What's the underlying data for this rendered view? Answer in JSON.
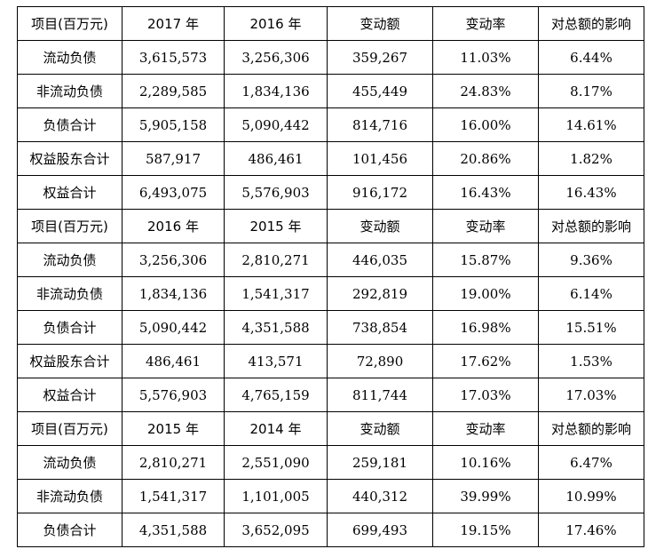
{
  "sections": [
    {
      "header": [
        "项目(百万元)",
        "2017 年",
        "2016 年",
        "变动额",
        "变动率",
        "对总额的影响"
      ],
      "rows": [
        [
          "流动负债",
          "3,615,573",
          "3,256,306",
          "359,267",
          "11.03%",
          "6.44%"
        ],
        [
          "非流动负债",
          "2,289,585",
          "1,834,136",
          "455,449",
          "24.83%",
          "8.17%"
        ],
        [
          "负债合计",
          "5,905,158",
          "5,090,442",
          "814,716",
          "16.00%",
          "14.61%"
        ],
        [
          "权益股东合计",
          "587,917",
          "486,461",
          "101,456",
          "20.86%",
          "1.82%"
        ],
        [
          "权益合计",
          "6,493,075",
          "5,576,903",
          "916,172",
          "16.43%",
          "16.43%"
        ]
      ]
    },
    {
      "header": [
        "项目(百万元)",
        "2016 年",
        "2015 年",
        "变动额",
        "变动率",
        "对总额的影响"
      ],
      "rows": [
        [
          "流动负债",
          "3,256,306",
          "2,810,271",
          "446,035",
          "15.87%",
          "9.36%"
        ],
        [
          "非流动负债",
          "1,834,136",
          "1,541,317",
          "292,819",
          "19.00%",
          "6.14%"
        ],
        [
          "负债合计",
          "5,090,442",
          "4,351,588",
          "738,854",
          "16.98%",
          "15.51%"
        ],
        [
          "权益股东合计",
          "486,461",
          "413,571",
          "72,890",
          "17.62%",
          "1.53%"
        ],
        [
          "权益合计",
          "5,576,903",
          "4,765,159",
          "811,744",
          "17.03%",
          "17.03%"
        ]
      ]
    },
    {
      "header": [
        "项目(百万元)",
        "2015 年",
        "2014 年",
        "变动额",
        "变动率",
        "对总额的影响"
      ],
      "rows": [
        [
          "流动负债",
          "2,810,271",
          "2,551,090",
          "259,181",
          "10.16%",
          "6.47%"
        ],
        [
          "非流动负债",
          "1,541,317",
          "1,101,005",
          "440,312",
          "39.99%",
          "10.99%"
        ],
        [
          "负债合计",
          "4,351,588",
          "3,652,095",
          "699,493",
          "19.15%",
          "17.46%"
        ]
      ]
    }
  ]
}
